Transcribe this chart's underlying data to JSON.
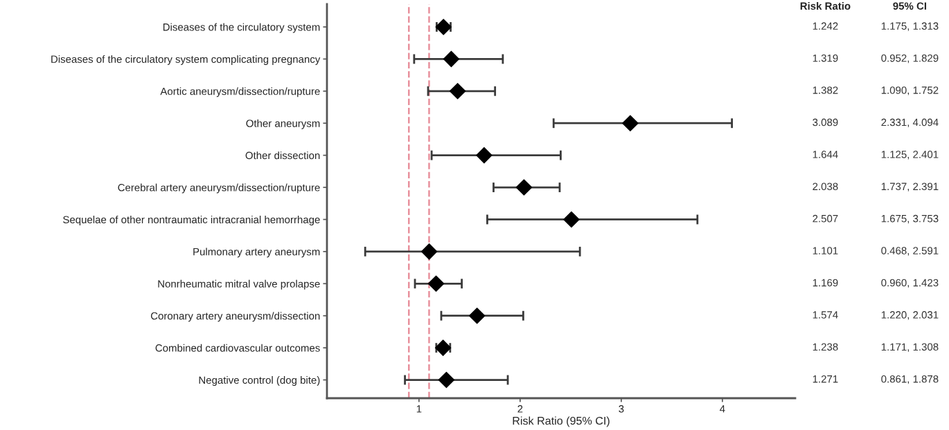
{
  "chart_data": {
    "type": "scatter",
    "orientation": "horizontal",
    "xlabel": "Risk Ratio (95% CI)",
    "categories": [
      "Diseases of the circulatory system",
      "Diseases of the circulatory system complicating pregnancy",
      "Aortic aneurysm/dissection/rupture",
      "Other aneurysm",
      "Other dissection",
      "Cerebral artery aneurysm/dissection/rupture",
      "Sequelae of other nontraumatic intracranial hemorrhage",
      "Pulmonary artery aneurysm",
      "Nonrheumatic mitral valve prolapse",
      "Coronary artery aneurysm/dissection",
      "Combined cardiovascular outcomes",
      "Negative control (dog bite)"
    ],
    "values": [
      1.242,
      1.319,
      1.382,
      3.089,
      1.644,
      2.038,
      2.507,
      1.101,
      1.169,
      1.574,
      1.238,
      1.271
    ],
    "errors": [
      [
        1.175,
        1.313
      ],
      [
        0.952,
        1.829
      ],
      [
        1.09,
        1.752
      ],
      [
        2.331,
        4.094
      ],
      [
        1.125,
        2.401
      ],
      [
        1.737,
        2.391
      ],
      [
        1.675,
        3.753
      ],
      [
        0.468,
        2.591
      ],
      [
        0.96,
        1.423
      ],
      [
        1.22,
        2.031
      ],
      [
        1.171,
        1.308
      ],
      [
        0.861,
        1.878
      ]
    ],
    "value_labels": [
      "1.242",
      "1.319",
      "1.382",
      "3.089",
      "1.644",
      "2.038",
      "2.507",
      "1.101",
      "1.169",
      "1.574",
      "1.238",
      "1.271"
    ],
    "annotations": [
      "Risk Ratio",
      "95% CI",
      "1.175, 1.313",
      "0.952, 1.829",
      "1.090, 1.752",
      "2.331, 4.094",
      "1.125, 2.401",
      "1.737, 2.391",
      "1.675, 3.753",
      "0.468, 2.591",
      "0.960, 1.423",
      "1.220, 2.031",
      "1.171, 1.308",
      "0.861, 1.878"
    ],
    "color": "#000000",
    "marker": "diamond",
    "xlim": [
      0.09,
      4.72
    ],
    "xticks": [
      1,
      2,
      3,
      4
    ],
    "ref_lines": [
      {
        "axis": "x",
        "value": 0.9,
        "color": "#e8909c",
        "line_style": "dashed"
      },
      {
        "axis": "x",
        "value": 1.1,
        "color": "#e8909c",
        "line_style": "dashed"
      }
    ],
    "grid": false
  }
}
